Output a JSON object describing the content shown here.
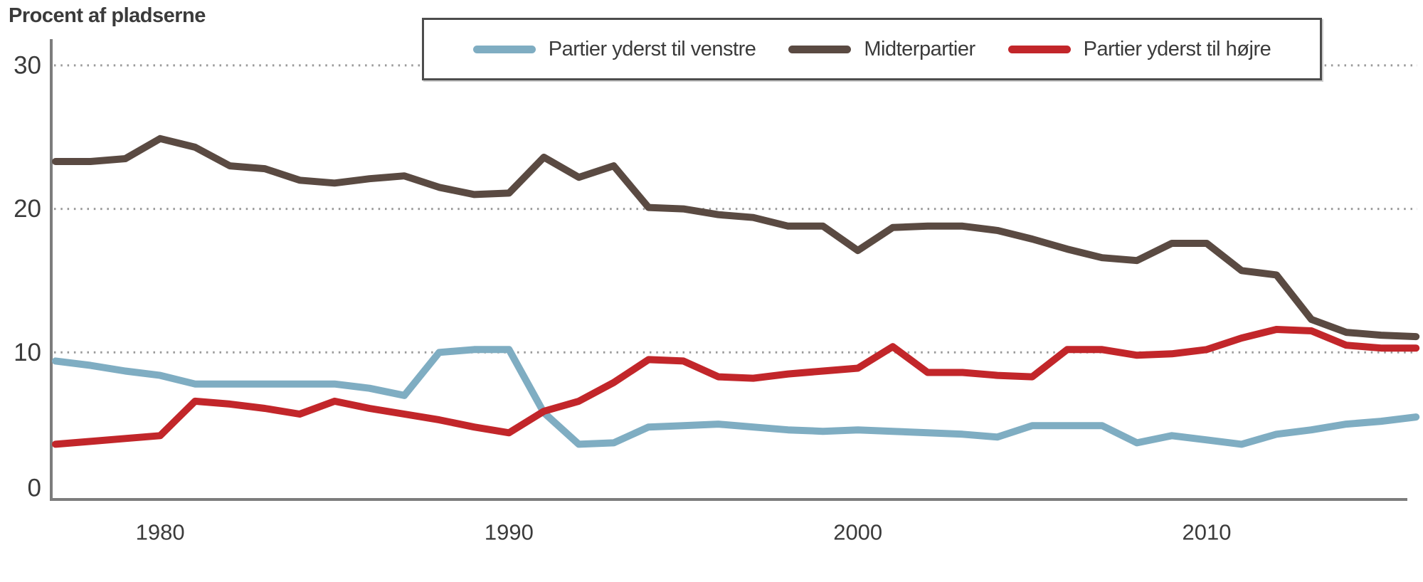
{
  "chart_data": {
    "type": "line",
    "title": "Procent af pladserne",
    "xlabel": "",
    "ylabel": "Procent af pladserne",
    "xlim": [
      1977,
      2016
    ],
    "ylim": [
      0,
      31
    ],
    "xticks": [
      1980,
      1990,
      2000,
      2010
    ],
    "yticks": [
      0,
      10,
      20,
      30
    ],
    "grid": "horizontal-dotted",
    "legend_position": "top-center-boxed",
    "x": [
      1977,
      1978,
      1979,
      1980,
      1981,
      1982,
      1983,
      1984,
      1985,
      1986,
      1987,
      1988,
      1989,
      1990,
      1991,
      1992,
      1993,
      1994,
      1995,
      1996,
      1997,
      1998,
      1999,
      2000,
      2001,
      2002,
      2003,
      2004,
      2005,
      2006,
      2007,
      2008,
      2009,
      2010,
      2011,
      2012,
      2013,
      2014,
      2015,
      2016
    ],
    "series": [
      {
        "id": "far-left",
        "name": "Partier yderst til venstre",
        "color": "#7fadc2",
        "values": [
          9.4,
          9.1,
          8.7,
          8.4,
          7.8,
          7.8,
          7.8,
          7.8,
          7.8,
          7.5,
          7.0,
          10.0,
          10.2,
          10.2,
          5.8,
          3.6,
          3.7,
          4.8,
          4.9,
          5.0,
          4.8,
          4.6,
          4.5,
          4.6,
          4.5,
          4.4,
          4.3,
          4.1,
          4.9,
          4.9,
          4.9,
          3.7,
          4.2,
          3.9,
          3.6,
          4.3,
          4.6,
          5.0,
          5.2,
          5.5
        ]
      },
      {
        "id": "center",
        "name": "Midterpartier",
        "color": "#5a4a42",
        "values": [
          23.3,
          23.3,
          23.5,
          24.9,
          24.3,
          23.0,
          22.8,
          22.0,
          21.8,
          22.1,
          22.3,
          21.5,
          21.0,
          21.1,
          23.6,
          22.2,
          23.0,
          20.1,
          20.0,
          19.6,
          19.4,
          18.8,
          18.8,
          17.1,
          18.7,
          18.8,
          18.8,
          18.5,
          17.9,
          17.2,
          16.6,
          16.4,
          17.6,
          17.6,
          15.7,
          15.4,
          12.3,
          11.4,
          11.2,
          11.1
        ]
      },
      {
        "id": "far-right",
        "name": "Partier yderst til højre",
        "color": "#c2262a",
        "values": [
          3.6,
          3.8,
          4.0,
          4.2,
          6.6,
          6.4,
          6.1,
          5.7,
          6.6,
          6.1,
          5.7,
          5.3,
          4.8,
          4.4,
          5.9,
          6.6,
          7.9,
          9.5,
          9.4,
          8.3,
          8.2,
          8.5,
          8.7,
          8.9,
          10.4,
          8.6,
          8.6,
          8.4,
          8.3,
          10.2,
          10.2,
          9.8,
          9.9,
          10.2,
          11.0,
          11.6,
          11.5,
          10.5,
          10.3,
          10.3
        ]
      }
    ]
  }
}
